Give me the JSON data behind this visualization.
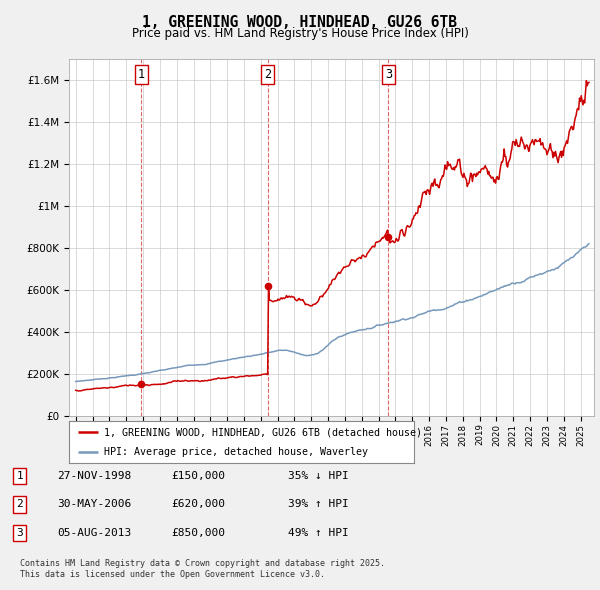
{
  "title": "1, GREENING WOOD, HINDHEAD, GU26 6TB",
  "subtitle": "Price paid vs. HM Land Registry's House Price Index (HPI)",
  "legend_line1": "1, GREENING WOOD, HINDHEAD, GU26 6TB (detached house)",
  "legend_line2": "HPI: Average price, detached house, Waverley",
  "sale1_date": "27-NOV-1998",
  "sale1_price": 150000,
  "sale1_hpi": "35% ↓ HPI",
  "sale2_date": "30-MAY-2006",
  "sale2_price": 620000,
  "sale2_hpi": "39% ↑ HPI",
  "sale3_date": "05-AUG-2013",
  "sale3_price": 850000,
  "sale3_hpi": "49% ↑ HPI",
  "sale_years": [
    1998.9,
    2006.42,
    2013.58
  ],
  "footnote1": "Contains HM Land Registry data © Crown copyright and database right 2025.",
  "footnote2": "This data is licensed under the Open Government Licence v3.0.",
  "red_color": "#cc0000",
  "blue_color": "#7799bb",
  "background_color": "#f0f0f0",
  "plot_bg_color": "#ffffff",
  "grid_color": "#cccccc",
  "ylim_max": 1700000,
  "n_points": 600
}
